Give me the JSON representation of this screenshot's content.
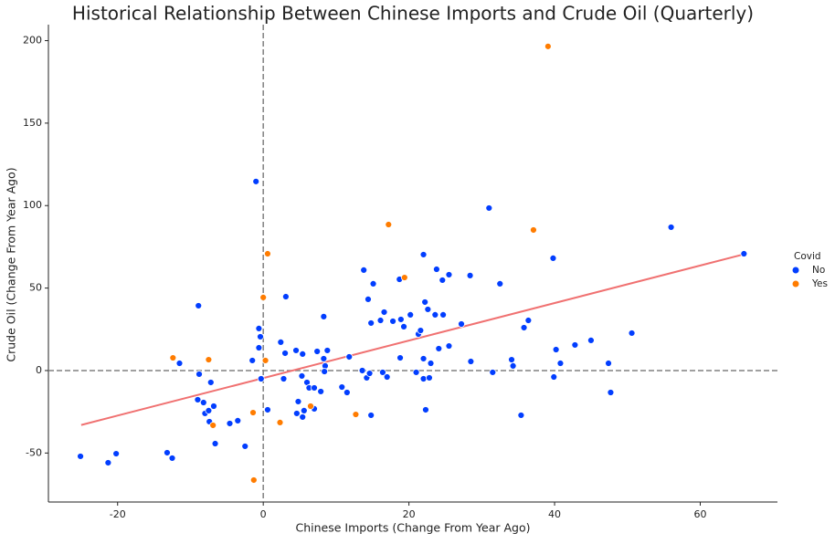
{
  "chart_data": {
    "type": "scatter",
    "title": "Historical Relationship Between Chinese Imports and Crude Oil (Quarterly)",
    "x_label": "Chinese Imports (Change From Year Ago)",
    "y_label": "Crude Oil (Change From Year Ago)",
    "legend_title": "Covid",
    "legend_position": "right",
    "xlim": [
      -29.5,
      70.6
    ],
    "ylim": [
      -79.7,
      209.7
    ],
    "xticks": [
      -20,
      0,
      20,
      40,
      60
    ],
    "yticks": [
      -50,
      0,
      50,
      100,
      150,
      200
    ],
    "reference_lines": {
      "x": 0,
      "y": 0,
      "color": "#808080"
    },
    "fit_line": {
      "color": "#f07171",
      "x": [
        -25,
        66
      ],
      "values": [
        -33,
        70.5
      ]
    },
    "series": [
      {
        "name": "No",
        "color": "#023eff",
        "x": [
          -25.1,
          -21.3,
          -20.2,
          -13.2,
          -12.5,
          -11.5,
          -8.9,
          -9,
          -8.8,
          -8.2,
          -8,
          -7.5,
          -7.2,
          -6.8,
          -7.4,
          -6.6,
          -4.6,
          -3.5,
          -2.5,
          -1.5,
          -1,
          -0.6,
          -0.4,
          -0.6,
          -0.3,
          0.6,
          3.1,
          2.4,
          3,
          2.8,
          4.5,
          4.8,
          4.6,
          5.4,
          5.3,
          5.6,
          5.4,
          6,
          6.3,
          7,
          7,
          7.4,
          7.9,
          8.3,
          8.3,
          8.5,
          8.4,
          8.8,
          10.8,
          11.5,
          11.8,
          13.6,
          13.8,
          14.2,
          14.4,
          14.6,
          14.8,
          14.8,
          15.1,
          16.1,
          16.6,
          16.4,
          17,
          17.8,
          18.7,
          18.8,
          18.9,
          19.3,
          20.2,
          21,
          21.3,
          21.6,
          22,
          22.2,
          22,
          22,
          22.3,
          22.6,
          22.8,
          23,
          23.6,
          23.8,
          24.1,
          24.7,
          24.6,
          25.5,
          25.5,
          27.2,
          28.4,
          28.5,
          31,
          31.5,
          32.5,
          34.1,
          34.3,
          35.4,
          35.8,
          36.4,
          39.8,
          39.9,
          40.2,
          40.8,
          42.8,
          45,
          47.4,
          47.7,
          50.6,
          56,
          66
        ],
        "values": [
          -52,
          -55.9,
          -50.4,
          -49.8,
          -53.1,
          4.4,
          39.3,
          -17.7,
          -2.2,
          -19.4,
          -26,
          -24.3,
          -7.2,
          -21.6,
          -31,
          -44.3,
          -32.1,
          -30.4,
          -45.9,
          6.1,
          114.6,
          25.5,
          20.5,
          13.8,
          -5,
          -23.8,
          44.8,
          17.2,
          10.5,
          -5,
          12.2,
          -18.8,
          -26,
          10,
          -3.3,
          -24.3,
          -28.2,
          -7.2,
          -10.5,
          -10.5,
          -23.2,
          11.6,
          -12.7,
          32.7,
          7.2,
          2.8,
          -0.6,
          12.2,
          -10,
          -13.3,
          8.3,
          0,
          60.9,
          -4.4,
          43.2,
          -1.7,
          28.8,
          -27.1,
          52.6,
          30.4,
          35.4,
          -1.1,
          -3.9,
          29.9,
          55.3,
          7.7,
          31,
          26.6,
          33.8,
          -1.1,
          22.1,
          24.3,
          70.3,
          41.5,
          7.2,
          -5,
          -23.8,
          37.1,
          -4.4,
          4.4,
          33.8,
          61.4,
          13.3,
          33.8,
          54.8,
          58.1,
          14.9,
          28.2,
          57.6,
          5.5,
          98.5,
          -1.1,
          52.6,
          6.6,
          2.8,
          -27.1,
          26,
          30.4,
          68.1,
          -3.9,
          12.7,
          4.4,
          15.5,
          18.3,
          4.4,
          -13.3,
          22.7,
          86.9,
          70.8
        ]
      },
      {
        "name": "Yes",
        "color": "#ff7c00",
        "x": [
          39.1,
          37.1,
          17.2,
          19.4,
          0.6,
          0,
          0.3,
          -12.4,
          -7.5,
          -6.9,
          -1.4,
          2.3,
          6.5,
          12.7,
          -1.3
        ],
        "values": [
          196.5,
          85.2,
          88.5,
          56.4,
          70.8,
          44.3,
          6.1,
          7.7,
          6.6,
          -33.2,
          -25.5,
          -31.5,
          -21.6,
          -26.6,
          -66.4
        ]
      }
    ]
  }
}
